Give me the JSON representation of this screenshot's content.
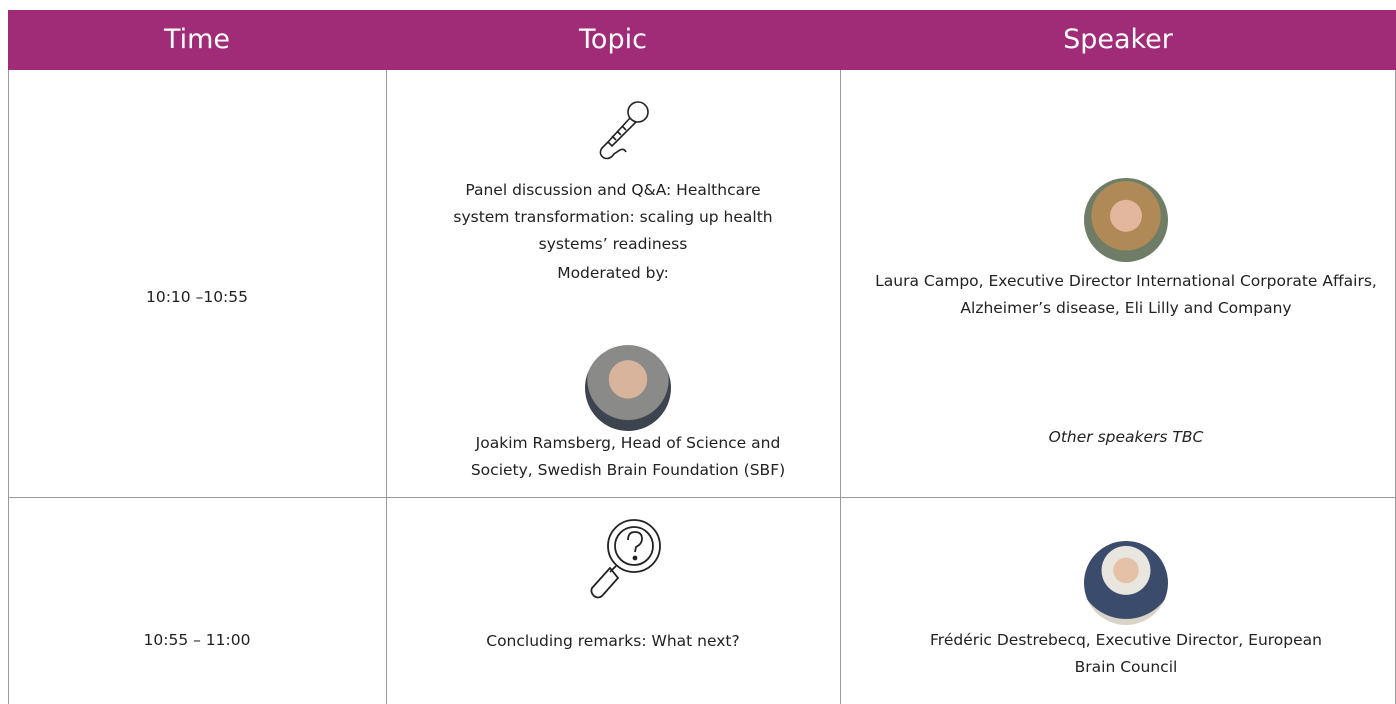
{
  "table": {
    "header": [
      "Time",
      "Topic",
      "Speaker"
    ],
    "rows": [
      {
        "time": "10:10 –10:55",
        "topic": "Panel discussion and Q&A: Healthcare system transformation: scaling up health systems’ readiness",
        "moderator_label": "Moderated by:",
        "moderator": "Joakim Ramsberg, Head of Science and Society, Swedish Brain Foundation (SBF)",
        "speakers": [
          "Laura Campo, Executive Director International Corporate Affairs, Alzheimer’s disease, Eli Lilly and Company"
        ],
        "note": "Other speakers TBC"
      },
      {
        "time": "10:55 – 11:00",
        "topic": "Concluding remarks: What next?",
        "speakers": [
          "Frédéric Destrebecq, Executive Director, European Brain Council"
        ]
      }
    ]
  }
}
